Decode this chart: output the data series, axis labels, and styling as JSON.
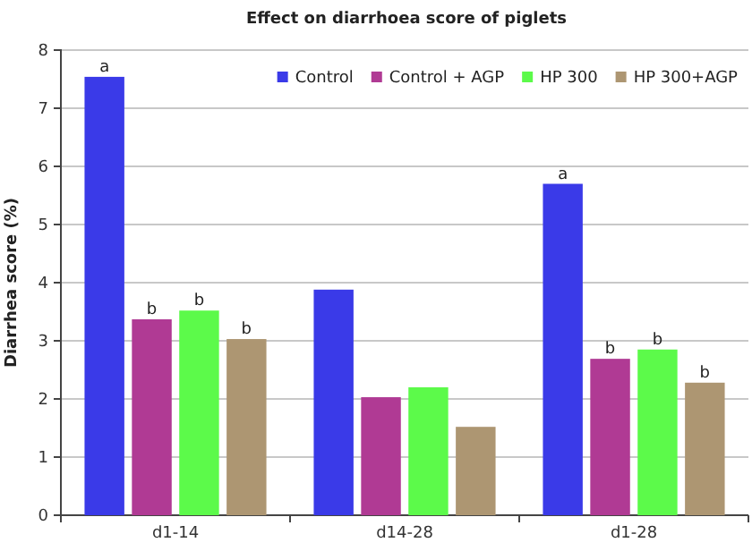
{
  "chart_data": {
    "type": "bar",
    "title": "Effect on diarrhoea score of piglets",
    "ylabel": "Diarrhea score (%)",
    "categories": [
      "d1-14",
      "d14-28",
      "d1-28"
    ],
    "series": [
      {
        "name": "Control",
        "color": "#3a3ae8",
        "values": [
          7.54,
          3.88,
          5.7
        ],
        "value_labels": [
          "a",
          null,
          "a"
        ]
      },
      {
        "name": "Control + AGP",
        "color": "#b03a94",
        "values": [
          3.37,
          2.03,
          2.69
        ],
        "value_labels": [
          "b",
          null,
          "b"
        ]
      },
      {
        "name": "HP 300",
        "color": "#5cfa4a",
        "values": [
          3.52,
          2.2,
          2.85
        ],
        "value_labels": [
          "b",
          null,
          "b"
        ]
      },
      {
        "name": "HP 300+AGP",
        "color": "#ad9672",
        "values": [
          3.03,
          1.52,
          2.28
        ],
        "value_labels": [
          "b",
          null,
          "b"
        ]
      }
    ],
    "ylim": [
      0,
      8
    ],
    "yticks": [
      0,
      1,
      2,
      3,
      4,
      5,
      6,
      7,
      8
    ],
    "grid": "y",
    "legend": "top right"
  }
}
